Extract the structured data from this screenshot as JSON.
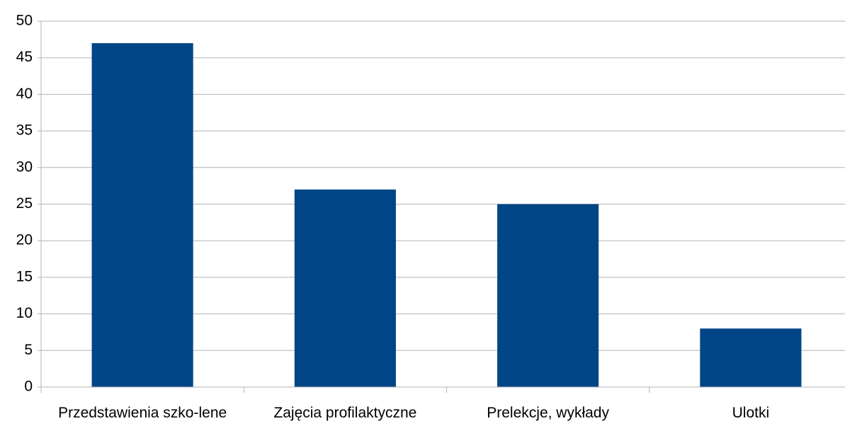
{
  "chart_data": {
    "type": "bar",
    "categories": [
      "Przedstawienia szko-lene",
      "Zajęcia profilaktyczne",
      "Prelekcje, wykłady",
      "Ulotki"
    ],
    "values": [
      47,
      27,
      25,
      8
    ],
    "color": "#004586",
    "ylim": [
      0,
      50
    ],
    "yticks": [
      0,
      5,
      10,
      15,
      20,
      25,
      30,
      35,
      40,
      45,
      50
    ],
    "grid": true
  }
}
